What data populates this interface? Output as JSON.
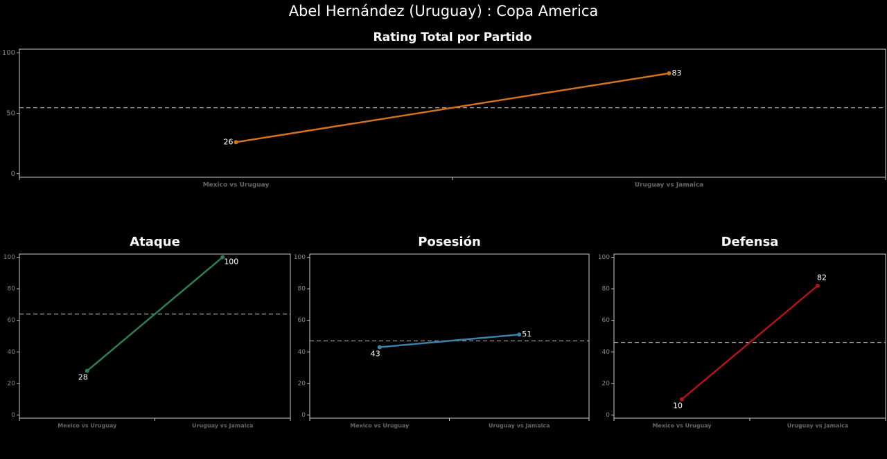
{
  "title": "Abel Hernández (Uruguay) :  Copa  America",
  "chart_data": [
    {
      "type": "line",
      "title": "Rating Total por Partido",
      "categories": [
        "Mexico vs Uruguay",
        "Uruguay vs Jamaica"
      ],
      "values": [
        26,
        83
      ],
      "color": "#d2711e",
      "reference_line": 54.5,
      "ylim": [
        -3,
        103
      ],
      "yticks": [
        0,
        50,
        100
      ]
    },
    {
      "type": "line",
      "title": "Ataque",
      "categories": [
        "Mexico vs Uruguay",
        "Uruguay vs Jamaica"
      ],
      "values": [
        28,
        100
      ],
      "color": "#2e8050",
      "reference_line": 64,
      "ylim": [
        -2,
        102
      ],
      "yticks": [
        0,
        20,
        40,
        60,
        80,
        100
      ]
    },
    {
      "type": "line",
      "title": "Posesión",
      "categories": [
        "Mexico vs Uruguay",
        "Uruguay vs Jamaica"
      ],
      "values": [
        43,
        51
      ],
      "color": "#3a80aa",
      "reference_line": 47,
      "ylim": [
        -2,
        102
      ],
      "yticks": [
        0,
        20,
        40,
        60,
        80,
        100
      ]
    },
    {
      "type": "line",
      "title": "Defensa",
      "categories": [
        "Mexico vs Uruguay",
        "Uruguay vs Jamaica"
      ],
      "values": [
        10,
        82
      ],
      "color": "#b5121b",
      "reference_line": 46,
      "ylim": [
        -2,
        102
      ],
      "yticks": [
        0,
        20,
        40,
        60,
        80,
        100
      ]
    }
  ]
}
